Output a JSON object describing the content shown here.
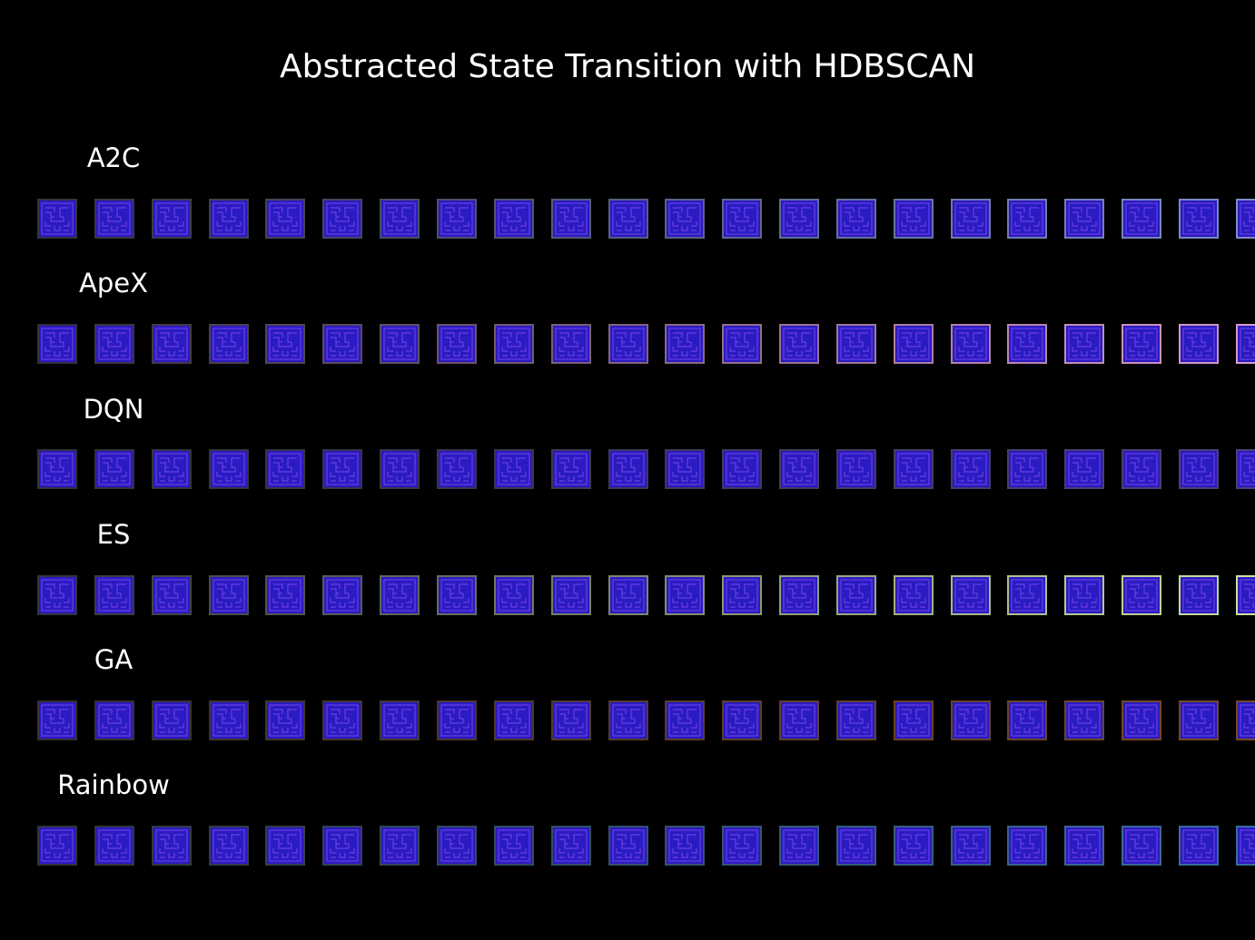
{
  "title": "Abstracted State Transition with HDBSCAN",
  "tile_color": "#2a1bc2",
  "tile_icon": "maze-frame-icon",
  "tiles_per_row": 22,
  "rows": [
    {
      "label": "A2C",
      "border_from": "#34343c",
      "border_to": "#7c8ec8"
    },
    {
      "label": "ApeX",
      "border_from": "#34303a",
      "border_to": "#d89cc4"
    },
    {
      "label": "DQN",
      "border_from": "#323038",
      "border_to": "#4c4078"
    },
    {
      "label": "ES",
      "border_from": "#34343c",
      "border_to": "#cce29a"
    },
    {
      "label": "GA",
      "border_from": "#36302e",
      "border_to": "#7a4822"
    },
    {
      "label": "Rainbow",
      "border_from": "#30343a",
      "border_to": "#3a6e9c"
    }
  ]
}
